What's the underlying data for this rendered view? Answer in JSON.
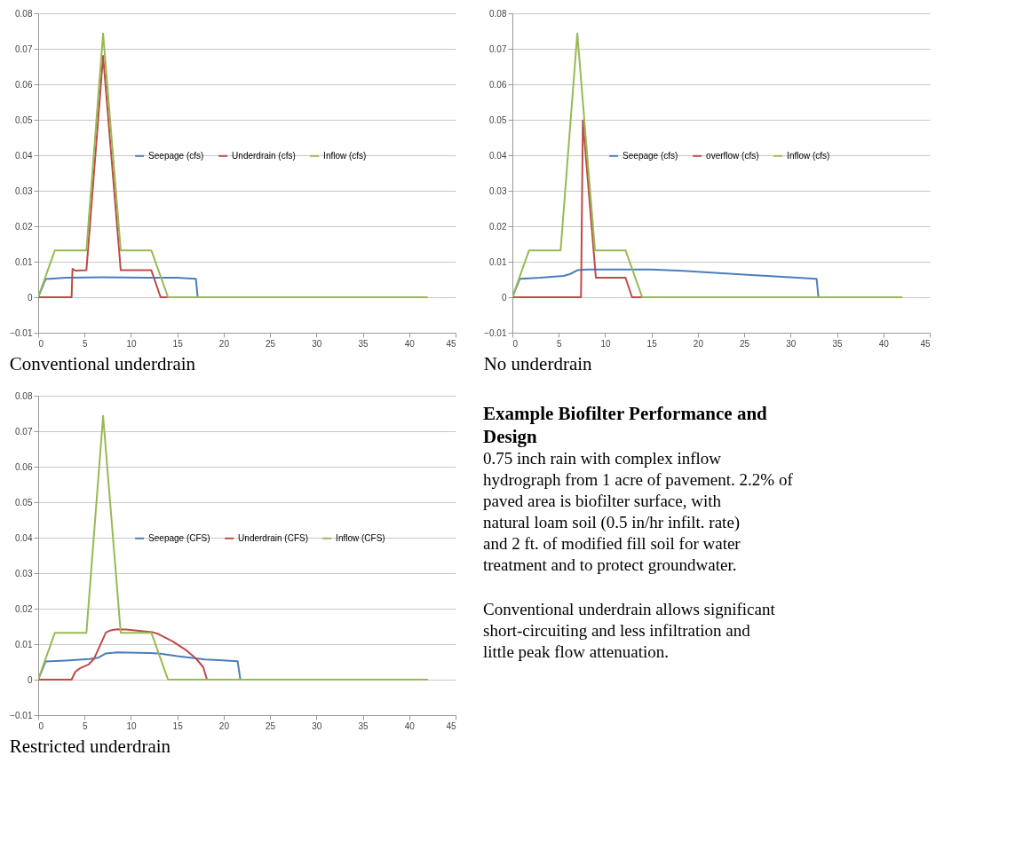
{
  "chart_data": [
    {
      "type": "line",
      "title": "Conventional underdrain",
      "xlim": [
        0,
        45
      ],
      "xticks": [
        0,
        5,
        10,
        15,
        20,
        25,
        30,
        35,
        40,
        45
      ],
      "ylim": [
        -0.01,
        0.08
      ],
      "yticks": [
        -0.01,
        0,
        0.01,
        0.02,
        0.03,
        0.04,
        0.05,
        0.06,
        0.07,
        0.08
      ],
      "grid": "y",
      "legend": "center",
      "series": [
        {
          "name": "Seepage (cfs)",
          "color": "#4a7ebb",
          "x": [
            0,
            0.8,
            3,
            7,
            12,
            15,
            17,
            17.2
          ],
          "values": [
            0,
            0.0051,
            0.0055,
            0.0056,
            0.0055,
            0.0055,
            0.0052,
            0
          ]
        },
        {
          "name": "Underdrain (cfs)",
          "color": "#be4b48",
          "x": [
            0,
            3.6,
            3.7,
            4,
            5.2,
            7,
            8.9,
            12.2,
            13.2,
            14
          ],
          "values": [
            0,
            0,
            0.008,
            0.0075,
            0.0076,
            0.068,
            0.0076,
            0.0076,
            0,
            0
          ]
        },
        {
          "name": "Inflow (cfs)",
          "color": "#98b954",
          "x": [
            0,
            1.8,
            5.2,
            7,
            8.9,
            12.2,
            14,
            42
          ],
          "values": [
            0,
            0.0132,
            0.0132,
            0.0743,
            0.0132,
            0.0132,
            0,
            0
          ]
        }
      ]
    },
    {
      "type": "line",
      "title": "No underdrain",
      "xlim": [
        0,
        45
      ],
      "xticks": [
        0,
        5,
        10,
        15,
        20,
        25,
        30,
        35,
        40,
        45
      ],
      "ylim": [
        -0.01,
        0.08
      ],
      "yticks": [
        -0.01,
        0,
        0.01,
        0.02,
        0.03,
        0.04,
        0.05,
        0.06,
        0.07,
        0.08
      ],
      "grid": "y",
      "legend": "center",
      "series": [
        {
          "name": "Seepage (cfs)",
          "color": "#4a7ebb",
          "x": [
            0,
            0.8,
            3,
            5.5,
            6.2,
            7,
            8,
            15,
            18,
            25,
            32.8,
            33,
            42
          ],
          "values": [
            0,
            0.0052,
            0.0055,
            0.006,
            0.0065,
            0.0076,
            0.0078,
            0.0078,
            0.0075,
            0.0064,
            0.0052,
            0,
            0
          ]
        },
        {
          "name": "overflow (cfs)",
          "color": "#be4b48",
          "x": [
            0,
            7.4,
            7.6,
            9,
            12.2,
            12.9,
            14
          ],
          "values": [
            0,
            0,
            0.0498,
            0.0055,
            0.0055,
            0,
            0
          ]
        },
        {
          "name": "Inflow (cfs)",
          "color": "#98b954",
          "x": [
            0,
            1.8,
            5.2,
            7,
            8.9,
            12.2,
            14,
            42
          ],
          "values": [
            0,
            0.0132,
            0.0132,
            0.0743,
            0.0132,
            0.0132,
            0,
            0
          ]
        }
      ]
    },
    {
      "type": "line",
      "title": "Restricted underdrain",
      "xlim": [
        0,
        45
      ],
      "xticks": [
        0,
        5,
        10,
        15,
        20,
        25,
        30,
        35,
        40,
        45
      ],
      "ylim": [
        -0.01,
        0.08
      ],
      "yticks": [
        -0.01,
        0,
        0.01,
        0.02,
        0.03,
        0.04,
        0.05,
        0.06,
        0.07,
        0.08
      ],
      "grid": "y",
      "legend": "center",
      "series": [
        {
          "name": "Seepage (CFS)",
          "color": "#4a7ebb",
          "x": [
            0,
            0.8,
            3,
            5.5,
            6.5,
            7.3,
            8.5,
            12,
            13,
            15,
            17,
            18,
            21.5,
            21.8,
            42
          ],
          "values": [
            0,
            0.0051,
            0.0054,
            0.0058,
            0.0062,
            0.0074,
            0.0077,
            0.0075,
            0.0074,
            0.0066,
            0.006,
            0.0057,
            0.0052,
            0,
            0
          ]
        },
        {
          "name": "Underdrain (CFS)",
          "color": "#be4b48",
          "x": [
            0,
            3.6,
            4,
            4.5,
            5.4,
            6,
            7.3,
            7.8,
            8.5,
            9.5,
            12.3,
            13,
            14.5,
            16,
            17,
            17.8,
            18.2,
            20
          ],
          "values": [
            0,
            0,
            0.0022,
            0.0032,
            0.0042,
            0.0058,
            0.0133,
            0.0139,
            0.0142,
            0.0141,
            0.0134,
            0.0128,
            0.0108,
            0.0082,
            0.006,
            0.0035,
            0,
            0
          ]
        },
        {
          "name": "Inflow (CFS)",
          "color": "#98b954",
          "x": [
            0,
            1.8,
            5.2,
            7,
            8.9,
            12.2,
            14,
            42
          ],
          "values": [
            0,
            0.0132,
            0.0132,
            0.0743,
            0.0132,
            0.0132,
            0,
            0
          ]
        }
      ]
    },
    {
      "type": "other",
      "title": "Example Biofilter Performance and Design",
      "annotations": [
        "0.75 inch rain with complex inflow hydrograph from 1 acre of pavement. 2.2% of paved area is biofilter surface, with natural loam soil (0.5 in/hr infilt. rate) and 2 ft. of modified fill soil for water treatment and to protect groundwater.",
        "Conventional underdrain allows significant short-circuiting and less infiltration and little peak flow attenuation."
      ]
    }
  ]
}
